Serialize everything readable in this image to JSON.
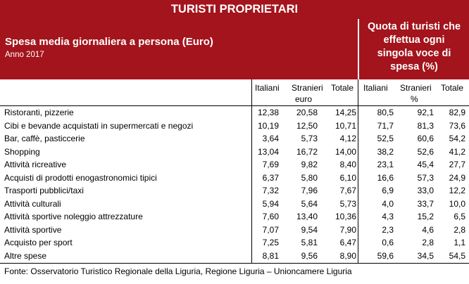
{
  "title": "TURISTI PROPRIETARI",
  "left_header": {
    "subtitle": "Spesa media giornaliera a persona (Euro)",
    "year": "Anno 2017"
  },
  "right_header": {
    "lines": [
      "Quota di turisti che",
      "effettua ogni",
      "singola voce di",
      "spesa (%)"
    ]
  },
  "columns": {
    "spend": [
      "Italiani",
      "Stranieri",
      "Totale"
    ],
    "spend_unit": "euro",
    "share": [
      "Italiani",
      "Stranieri",
      "Totale"
    ],
    "share_unit": "%"
  },
  "rows": [
    {
      "label": "Ristoranti, pizzerie",
      "values": [
        "12,38",
        "20,58",
        "14,25",
        "80,5",
        "92,1",
        "82,9"
      ]
    },
    {
      "label": "Cibi e bevande acquistati in supermercati e negozi",
      "values": [
        "10,19",
        "12,50",
        "10,71",
        "71,7",
        "81,3",
        "73,6"
      ]
    },
    {
      "label": "Bar, caffè, pasticcerie",
      "values": [
        "3,64",
        "5,73",
        "4,12",
        "52,5",
        "60,6",
        "54,2"
      ]
    },
    {
      "label": "Shopping",
      "values": [
        "13,04",
        "16,72",
        "14,00",
        "38,2",
        "52,6",
        "41,2"
      ]
    },
    {
      "label": "Attività ricreative",
      "values": [
        "7,69",
        "9,82",
        "8,40",
        "23,1",
        "45,4",
        "27,7"
      ]
    },
    {
      "label": "Acquisti di prodotti enogastronomici tipici",
      "values": [
        "6,37",
        "5,80",
        "6,10",
        "16,6",
        "57,3",
        "24,9"
      ]
    },
    {
      "label": "Trasporti pubblici/taxi",
      "values": [
        "7,32",
        "7,96",
        "7,67",
        "6,9",
        "33,0",
        "12,2"
      ]
    },
    {
      "label": "Attività culturali",
      "values": [
        "5,94",
        "5,64",
        "5,73",
        "4,0",
        "33,7",
        "10,0"
      ]
    },
    {
      "label": "Attività sportive noleggio attrezzature",
      "values": [
        "7,60",
        "13,40",
        "10,36",
        "4,3",
        "15,2",
        "6,5"
      ]
    },
    {
      "label": "Attività sportive",
      "values": [
        "7,07",
        "9,54",
        "7,90",
        "2,3",
        "4,6",
        "2,8"
      ]
    },
    {
      "label": "Acquisto per sport",
      "values": [
        "7,25",
        "5,81",
        "6,47",
        "0,6",
        "2,8",
        "1,1"
      ]
    },
    {
      "label": "Altre spese",
      "values": [
        "8,81",
        "9,56",
        "8,90",
        "59,6",
        "34,5",
        "54,5"
      ]
    }
  ],
  "source": "Fonte: Osservatorio Turistico Regionale della Liguria, Regione Liguria – Unioncamere Liguria"
}
